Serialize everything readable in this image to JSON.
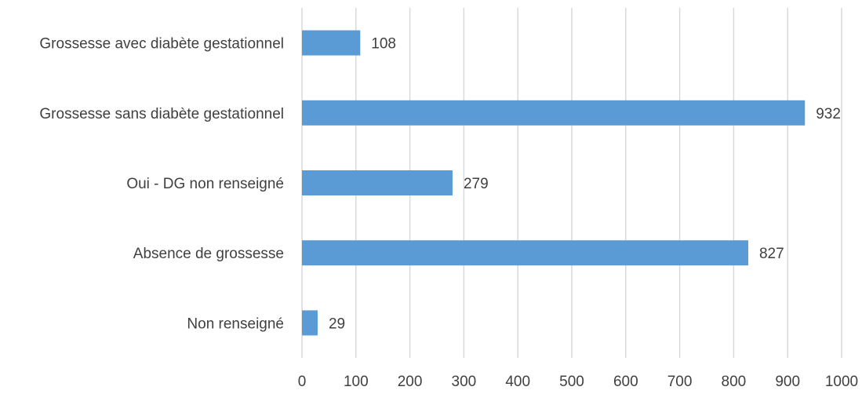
{
  "chart_data": {
    "type": "bar",
    "orientation": "horizontal",
    "title": "",
    "xlabel": "",
    "ylabel": "",
    "categories": [
      "Grossesse avec diabète gestationnel",
      "Grossesse sans diabète gestationnel",
      "Oui - DG non renseigné",
      "Absence de grossesse",
      "Non renseigné"
    ],
    "values": [
      108,
      932,
      279,
      827,
      29
    ],
    "data_labels": [
      "108",
      "932",
      "279",
      "827",
      "29"
    ],
    "xlim": [
      0,
      1000
    ],
    "x_ticks": [
      0,
      100,
      200,
      300,
      400,
      500,
      600,
      700,
      800,
      900,
      1000
    ],
    "x_tick_labels": [
      "0",
      "100",
      "200",
      "300",
      "400",
      "500",
      "600",
      "700",
      "800",
      "900",
      "1000"
    ],
    "grid": true,
    "legend": "none",
    "colors": {
      "bar": "#5B9BD5",
      "grid": "#D9D9D9",
      "text": "#404040"
    }
  }
}
